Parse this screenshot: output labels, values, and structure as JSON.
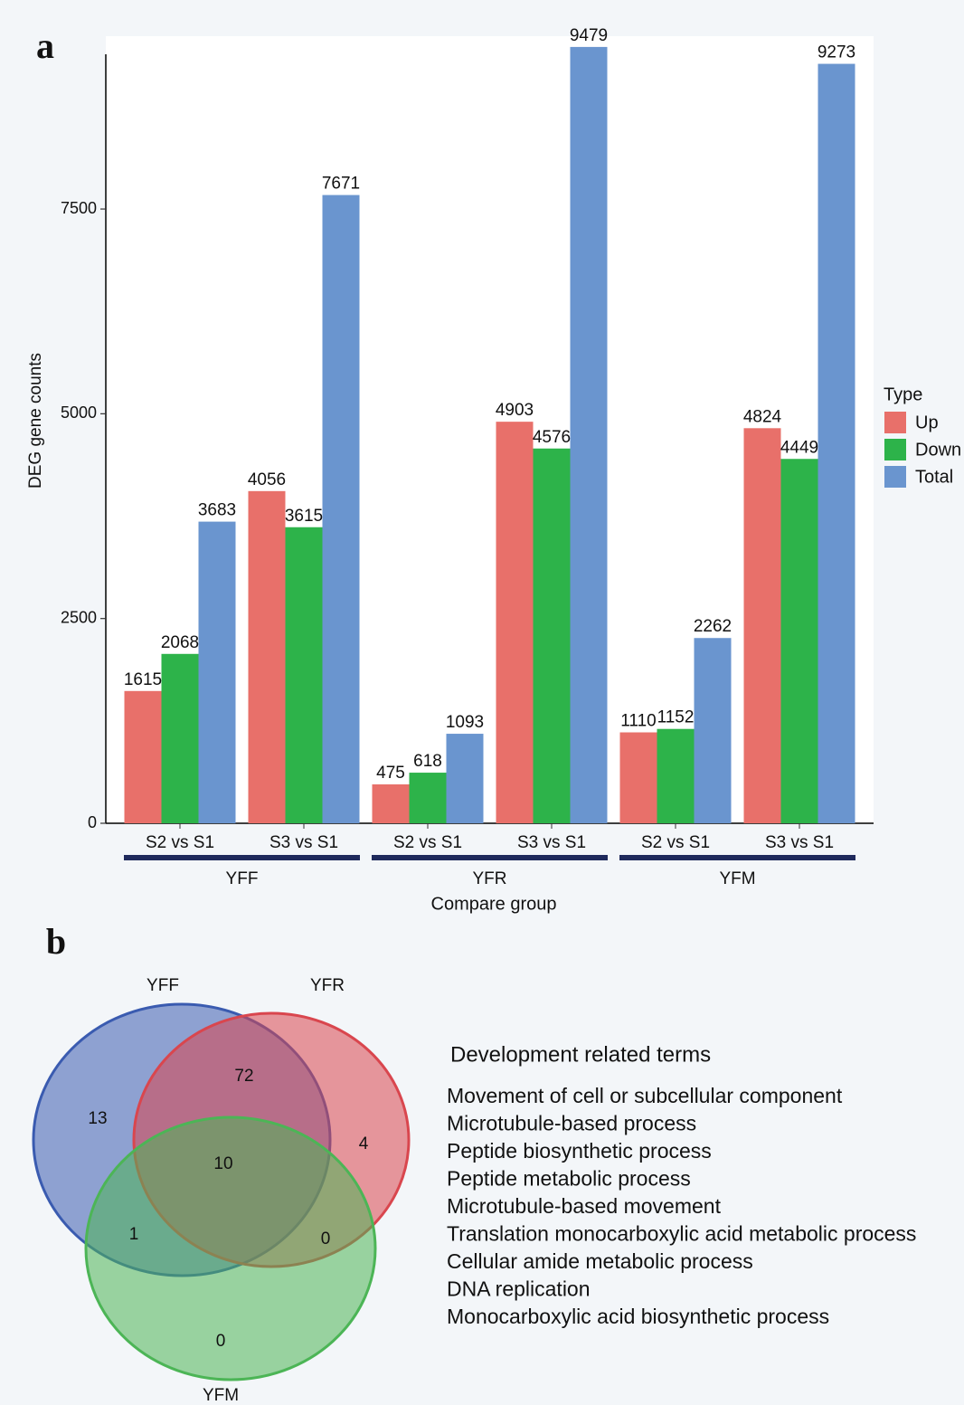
{
  "chart_data": [
    {
      "type": "bar",
      "panel_label": "a",
      "x_label": "Compare group",
      "y_label": "DEG gene counts",
      "groups": [
        {
          "name": "YFF",
          "categories": [
            "S2 vs S1",
            "S3 vs S1"
          ]
        },
        {
          "name": "YFR",
          "categories": [
            "S2 vs S1",
            "S3 vs S1"
          ]
        },
        {
          "name": "YFM",
          "categories": [
            "S2 vs S1",
            "S3 vs S1"
          ]
        }
      ],
      "legend_title": "Type",
      "legend_position": "right",
      "series": [
        {
          "name": "Up",
          "color": "#e8706a",
          "values": [
            1615,
            4056,
            475,
            4903,
            1110,
            4824
          ]
        },
        {
          "name": "Down",
          "color": "#2db34a",
          "values": [
            2068,
            3615,
            618,
            4576,
            1152,
            4449
          ]
        },
        {
          "name": "Total",
          "color": "#6a95cf",
          "values": [
            3683,
            7671,
            1093,
            9479,
            2262,
            9273
          ]
        }
      ],
      "ylim": [
        0,
        9500
      ],
      "yticks": [
        0,
        2500,
        5000,
        7500
      ],
      "grid": false
    },
    {
      "type": "venn",
      "panel_label": "b",
      "sets": [
        {
          "name": "YFF",
          "color": "#3a5bb0"
        },
        {
          "name": "YFR",
          "color": "#d9464e"
        },
        {
          "name": "YFM",
          "color": "#4cb556"
        }
      ],
      "region_counts": [
        13,
        72,
        4,
        10,
        1,
        0,
        0
      ],
      "list_title": "Development related terms",
      "terms": [
        "Movement of cell or subcellular component",
        "Microtubule-based process",
        "Peptide biosynthetic process",
        "Peptide metabolic process",
        "Microtubule-based movement",
        "Translation monocarboxylic acid metabolic process",
        "Cellular amide metabolic process",
        "DNA replication",
        "Monocarboxylic acid biosynthetic process"
      ]
    }
  ]
}
